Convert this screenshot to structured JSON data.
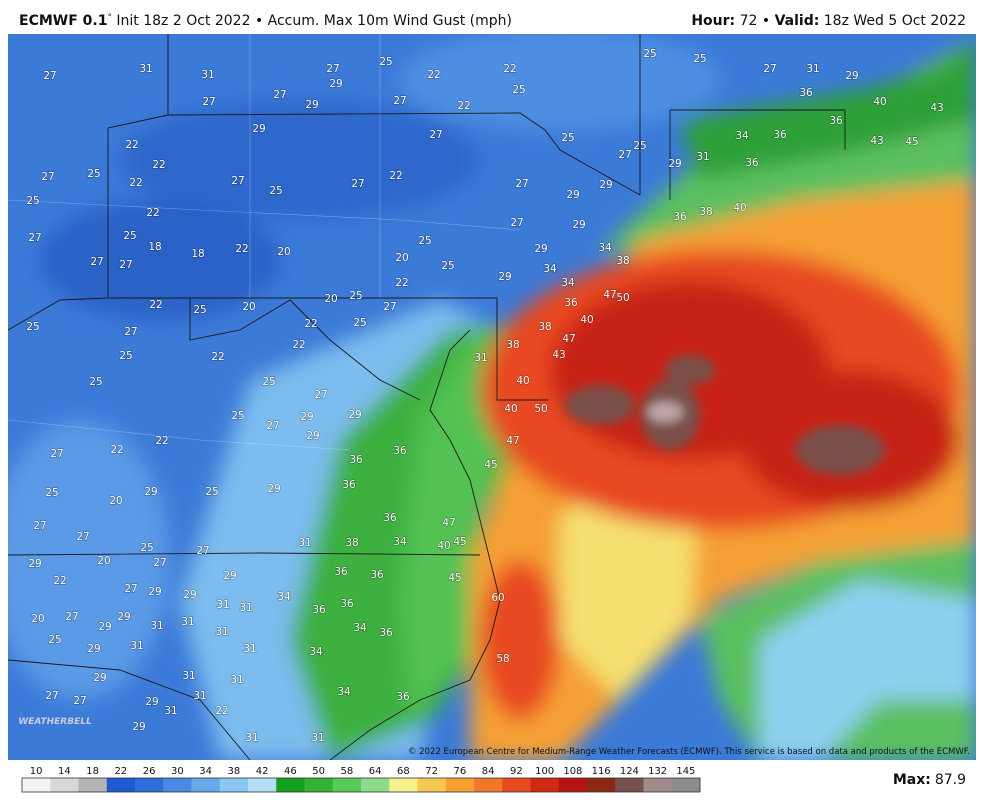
{
  "header": {
    "left_bold": "ECMWF 0.1",
    "left_degree": "°",
    "left_rest": " Init 18z 2 Oct 2022 • Accum. Max 10m Wind Gust (mph)",
    "hour_label": "Hour:",
    "hour_value": " 72 • ",
    "valid_label": "Valid:",
    "valid_value": " 18z Wed 5 Oct 2022"
  },
  "map": {
    "labels": [
      27,
      31,
      31,
      27,
      29,
      25,
      22,
      22,
      25,
      25,
      25,
      27,
      31,
      29,
      36,
      40,
      43,
      36,
      36,
      43,
      45,
      34,
      31,
      25,
      27,
      29,
      36,
      40,
      38,
      36,
      29,
      29,
      27,
      22,
      22,
      27,
      25,
      22,
      27,
      25,
      27,
      22,
      27,
      29,
      27,
      27,
      29,
      27,
      22,
      25,
      25,
      22,
      27,
      25,
      18,
      18,
      22,
      20,
      25,
      20,
      25,
      27,
      29,
      29,
      34,
      38,
      34,
      34,
      29,
      22,
      27,
      27,
      22,
      25,
      20,
      20,
      25,
      27,
      22,
      25,
      22,
      27,
      25,
      22,
      25,
      25,
      25,
      27,
      29,
      29,
      25,
      27,
      29,
      22,
      22,
      27,
      25,
      20,
      29,
      25,
      29,
      27,
      27,
      25,
      27,
      31,
      29,
      20,
      27,
      22,
      27,
      29,
      29,
      29,
      31,
      31,
      34,
      29,
      31,
      31,
      31,
      20,
      27,
      25,
      29,
      31,
      31,
      29,
      29,
      31,
      31,
      27,
      27,
      29,
      31,
      31,
      22,
      29,
      31,
      31,
      36,
      36,
      36,
      38,
      34,
      40,
      45,
      36,
      36,
      36,
      36,
      34,
      36,
      34,
      34,
      36,
      47,
      45,
      47,
      40,
      40,
      38,
      38,
      47,
      43,
      40,
      47,
      50,
      36,
      50,
      31,
      60,
      58,
      45,
      36
    ],
    "logo": "WEATHERBELL",
    "copyright": "© 2022 European Centre for Medium-Range Weather Forecasts (ECMWF). This service is based on data and products of the ECMWF."
  },
  "colorbar": {
    "ticks": [
      10,
      14,
      18,
      22,
      26,
      30,
      34,
      38,
      42,
      46,
      50,
      58,
      64,
      68,
      72,
      76,
      84,
      92,
      100,
      108,
      116,
      124,
      132,
      145
    ],
    "colors": [
      "#f4f4f4",
      "#d8d8d8",
      "#b4b4b4",
      "#1e5ad2",
      "#2e6edc",
      "#4a8ae4",
      "#6aa8ec",
      "#8cc6f2",
      "#b4e0f6",
      "#14a01e",
      "#32b432",
      "#5ac85a",
      "#8cdc8c",
      "#f5f08c",
      "#f5c850",
      "#f5a032",
      "#f07828",
      "#e64b1e",
      "#d22814",
      "#b41414",
      "#8c2814",
      "#785050",
      "#a08c8c",
      "#8c8c8c"
    ]
  },
  "footer": {
    "max_label": "Max:",
    "max_value": 87.9
  }
}
